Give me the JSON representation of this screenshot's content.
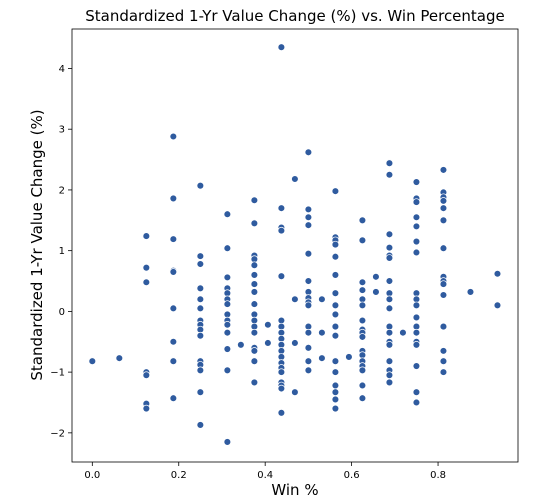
{
  "chart_data": {
    "type": "scatter",
    "title": "Standardized 1-Yr Value Change (%) vs. Win Percentage",
    "xlabel": "Win %",
    "ylabel": "Standardized 1-Yr Value Change (%)",
    "xlim": [
      -0.047,
      0.985
    ],
    "ylim": [
      -2.48,
      4.65
    ],
    "xticks": [
      {
        "value": 0.0,
        "label": "0.0"
      },
      {
        "value": 0.2,
        "label": "0.2"
      },
      {
        "value": 0.4,
        "label": "0.4"
      },
      {
        "value": 0.6,
        "label": "0.6"
      },
      {
        "value": 0.8,
        "label": "0.8"
      }
    ],
    "yticks": [
      {
        "value": -2,
        "label": "−2"
      },
      {
        "value": -1,
        "label": "−1"
      },
      {
        "value": 0,
        "label": "0"
      },
      {
        "value": 1,
        "label": "1"
      },
      {
        "value": 2,
        "label": "2"
      },
      {
        "value": 3,
        "label": "3"
      },
      {
        "value": 4,
        "label": "4"
      }
    ],
    "grid": false,
    "color": "#2f5b9f",
    "points": [
      {
        "x": 0.0,
        "y": -0.82
      },
      {
        "x": 0.0625,
        "y": -0.77
      },
      {
        "x": 0.125,
        "y": 1.24
      },
      {
        "x": 0.125,
        "y": 0.72
      },
      {
        "x": 0.125,
        "y": 0.48
      },
      {
        "x": 0.125,
        "y": -1.0
      },
      {
        "x": 0.125,
        "y": -1.05
      },
      {
        "x": 0.125,
        "y": -1.52
      },
      {
        "x": 0.125,
        "y": -1.6
      },
      {
        "x": 0.1875,
        "y": 2.88
      },
      {
        "x": 0.1875,
        "y": 1.86
      },
      {
        "x": 0.1875,
        "y": 1.19
      },
      {
        "x": 0.1875,
        "y": 0.67
      },
      {
        "x": 0.1875,
        "y": 0.65
      },
      {
        "x": 0.1875,
        "y": 0.05
      },
      {
        "x": 0.1875,
        "y": -0.5
      },
      {
        "x": 0.1875,
        "y": -0.82
      },
      {
        "x": 0.1875,
        "y": -1.43
      },
      {
        "x": 0.25,
        "y": 2.07
      },
      {
        "x": 0.25,
        "y": 0.91
      },
      {
        "x": 0.25,
        "y": 0.78
      },
      {
        "x": 0.25,
        "y": 0.38
      },
      {
        "x": 0.25,
        "y": 0.2
      },
      {
        "x": 0.25,
        "y": 0.05
      },
      {
        "x": 0.25,
        "y": -0.15
      },
      {
        "x": 0.25,
        "y": -0.22
      },
      {
        "x": 0.25,
        "y": -0.3
      },
      {
        "x": 0.25,
        "y": -0.4
      },
      {
        "x": 0.25,
        "y": -0.82
      },
      {
        "x": 0.25,
        "y": -0.88
      },
      {
        "x": 0.25,
        "y": -0.97
      },
      {
        "x": 0.25,
        "y": -1.33
      },
      {
        "x": 0.25,
        "y": -1.87
      },
      {
        "x": 0.3125,
        "y": 1.6
      },
      {
        "x": 0.3125,
        "y": 1.04
      },
      {
        "x": 0.3125,
        "y": 0.56
      },
      {
        "x": 0.3125,
        "y": 0.38
      },
      {
        "x": 0.3125,
        "y": 0.3
      },
      {
        "x": 0.3125,
        "y": 0.2
      },
      {
        "x": 0.3125,
        "y": 0.12
      },
      {
        "x": 0.3125,
        "y": -0.05
      },
      {
        "x": 0.3125,
        "y": -0.15
      },
      {
        "x": 0.3125,
        "y": -0.22
      },
      {
        "x": 0.3125,
        "y": -0.35
      },
      {
        "x": 0.3125,
        "y": -0.62
      },
      {
        "x": 0.3125,
        "y": -0.97
      },
      {
        "x": 0.3125,
        "y": -2.15
      },
      {
        "x": 0.34375,
        "y": -0.55
      },
      {
        "x": 0.375,
        "y": 1.83
      },
      {
        "x": 0.375,
        "y": 1.45
      },
      {
        "x": 0.375,
        "y": 0.92
      },
      {
        "x": 0.375,
        "y": 0.86
      },
      {
        "x": 0.375,
        "y": 0.76
      },
      {
        "x": 0.375,
        "y": 0.6
      },
      {
        "x": 0.375,
        "y": 0.45
      },
      {
        "x": 0.375,
        "y": 0.32
      },
      {
        "x": 0.375,
        "y": 0.12
      },
      {
        "x": 0.375,
        "y": -0.05
      },
      {
        "x": 0.375,
        "y": -0.15
      },
      {
        "x": 0.375,
        "y": -0.25
      },
      {
        "x": 0.375,
        "y": -0.35
      },
      {
        "x": 0.375,
        "y": -0.6
      },
      {
        "x": 0.375,
        "y": -0.65
      },
      {
        "x": 0.375,
        "y": -0.82
      },
      {
        "x": 0.375,
        "y": -1.17
      },
      {
        "x": 0.40625,
        "y": -0.22
      },
      {
        "x": 0.40625,
        "y": -0.52
      },
      {
        "x": 0.4375,
        "y": 4.35
      },
      {
        "x": 0.4375,
        "y": 1.7
      },
      {
        "x": 0.4375,
        "y": 1.38
      },
      {
        "x": 0.4375,
        "y": 1.33
      },
      {
        "x": 0.4375,
        "y": 0.58
      },
      {
        "x": 0.4375,
        "y": -0.15
      },
      {
        "x": 0.4375,
        "y": -0.25
      },
      {
        "x": 0.4375,
        "y": -0.35
      },
      {
        "x": 0.4375,
        "y": -0.45
      },
      {
        "x": 0.4375,
        "y": -0.55
      },
      {
        "x": 0.4375,
        "y": -0.65
      },
      {
        "x": 0.4375,
        "y": -0.75
      },
      {
        "x": 0.4375,
        "y": -0.85
      },
      {
        "x": 0.4375,
        "y": -0.93
      },
      {
        "x": 0.4375,
        "y": -1.0
      },
      {
        "x": 0.4375,
        "y": -1.17
      },
      {
        "x": 0.4375,
        "y": -1.22
      },
      {
        "x": 0.4375,
        "y": -1.27
      },
      {
        "x": 0.4375,
        "y": -1.67
      },
      {
        "x": 0.46875,
        "y": 2.18
      },
      {
        "x": 0.46875,
        "y": 0.2
      },
      {
        "x": 0.46875,
        "y": -0.52
      },
      {
        "x": 0.46875,
        "y": -1.33
      },
      {
        "x": 0.5,
        "y": 2.62
      },
      {
        "x": 0.5,
        "y": 1.68
      },
      {
        "x": 0.5,
        "y": 1.55
      },
      {
        "x": 0.5,
        "y": 1.42
      },
      {
        "x": 0.5,
        "y": 0.95
      },
      {
        "x": 0.5,
        "y": 0.5
      },
      {
        "x": 0.5,
        "y": 0.32
      },
      {
        "x": 0.5,
        "y": 0.22
      },
      {
        "x": 0.5,
        "y": 0.15
      },
      {
        "x": 0.5,
        "y": 0.1
      },
      {
        "x": 0.5,
        "y": -0.25
      },
      {
        "x": 0.5,
        "y": -0.35
      },
      {
        "x": 0.5,
        "y": -0.6
      },
      {
        "x": 0.5,
        "y": -0.82
      },
      {
        "x": 0.5,
        "y": -0.97
      },
      {
        "x": 0.53125,
        "y": 0.2
      },
      {
        "x": 0.53125,
        "y": -0.35
      },
      {
        "x": 0.53125,
        "y": -0.77
      },
      {
        "x": 0.5625,
        "y": 1.98
      },
      {
        "x": 0.5625,
        "y": 1.22
      },
      {
        "x": 0.5625,
        "y": 1.17
      },
      {
        "x": 0.5625,
        "y": 1.1
      },
      {
        "x": 0.5625,
        "y": 0.9
      },
      {
        "x": 0.5625,
        "y": 0.6
      },
      {
        "x": 0.5625,
        "y": 0.3
      },
      {
        "x": 0.5625,
        "y": 0.1
      },
      {
        "x": 0.5625,
        "y": -0.05
      },
      {
        "x": 0.5625,
        "y": -0.25
      },
      {
        "x": 0.5625,
        "y": -0.4
      },
      {
        "x": 0.5625,
        "y": -0.82
      },
      {
        "x": 0.5625,
        "y": -1.0
      },
      {
        "x": 0.5625,
        "y": -1.22
      },
      {
        "x": 0.5625,
        "y": -1.33
      },
      {
        "x": 0.5625,
        "y": -1.45
      },
      {
        "x": 0.5625,
        "y": -1.6
      },
      {
        "x": 0.59375,
        "y": -0.75
      },
      {
        "x": 0.625,
        "y": 1.5
      },
      {
        "x": 0.625,
        "y": 1.17
      },
      {
        "x": 0.625,
        "y": 0.48
      },
      {
        "x": 0.625,
        "y": 0.35
      },
      {
        "x": 0.625,
        "y": 0.2
      },
      {
        "x": 0.625,
        "y": 0.1
      },
      {
        "x": 0.625,
        "y": -0.15
      },
      {
        "x": 0.625,
        "y": -0.3
      },
      {
        "x": 0.625,
        "y": -0.35
      },
      {
        "x": 0.625,
        "y": -0.42
      },
      {
        "x": 0.625,
        "y": -0.65
      },
      {
        "x": 0.625,
        "y": -0.72
      },
      {
        "x": 0.625,
        "y": -0.82
      },
      {
        "x": 0.625,
        "y": -0.9
      },
      {
        "x": 0.625,
        "y": -0.97
      },
      {
        "x": 0.625,
        "y": -1.22
      },
      {
        "x": 0.625,
        "y": -1.43
      },
      {
        "x": 0.65625,
        "y": 0.57
      },
      {
        "x": 0.65625,
        "y": 0.32
      },
      {
        "x": 0.6875,
        "y": 2.44
      },
      {
        "x": 0.6875,
        "y": 2.25
      },
      {
        "x": 0.6875,
        "y": 1.27
      },
      {
        "x": 0.6875,
        "y": 1.05
      },
      {
        "x": 0.6875,
        "y": 0.92
      },
      {
        "x": 0.6875,
        "y": 0.88
      },
      {
        "x": 0.6875,
        "y": 0.5
      },
      {
        "x": 0.6875,
        "y": 0.3
      },
      {
        "x": 0.6875,
        "y": 0.2
      },
      {
        "x": 0.6875,
        "y": 0.05
      },
      {
        "x": 0.6875,
        "y": -0.25
      },
      {
        "x": 0.6875,
        "y": -0.35
      },
      {
        "x": 0.6875,
        "y": -0.5
      },
      {
        "x": 0.6875,
        "y": -0.55
      },
      {
        "x": 0.6875,
        "y": -0.82
      },
      {
        "x": 0.6875,
        "y": -0.97
      },
      {
        "x": 0.6875,
        "y": -1.05
      },
      {
        "x": 0.6875,
        "y": -1.17
      },
      {
        "x": 0.71875,
        "y": -0.35
      },
      {
        "x": 0.75,
        "y": 2.13
      },
      {
        "x": 0.75,
        "y": 1.86
      },
      {
        "x": 0.75,
        "y": 1.8
      },
      {
        "x": 0.75,
        "y": 1.55
      },
      {
        "x": 0.75,
        "y": 1.4
      },
      {
        "x": 0.75,
        "y": 1.15
      },
      {
        "x": 0.75,
        "y": 0.97
      },
      {
        "x": 0.75,
        "y": 0.3
      },
      {
        "x": 0.75,
        "y": 0.2
      },
      {
        "x": 0.75,
        "y": 0.1
      },
      {
        "x": 0.75,
        "y": -0.1
      },
      {
        "x": 0.75,
        "y": -0.25
      },
      {
        "x": 0.75,
        "y": -0.35
      },
      {
        "x": 0.75,
        "y": -0.5
      },
      {
        "x": 0.75,
        "y": -0.55
      },
      {
        "x": 0.75,
        "y": -0.9
      },
      {
        "x": 0.75,
        "y": -1.33
      },
      {
        "x": 0.75,
        "y": -1.5
      },
      {
        "x": 0.8125,
        "y": 2.33
      },
      {
        "x": 0.8125,
        "y": 1.96
      },
      {
        "x": 0.8125,
        "y": 1.88
      },
      {
        "x": 0.8125,
        "y": 1.82
      },
      {
        "x": 0.8125,
        "y": 1.7
      },
      {
        "x": 0.8125,
        "y": 1.5
      },
      {
        "x": 0.8125,
        "y": 1.04
      },
      {
        "x": 0.8125,
        "y": 0.57
      },
      {
        "x": 0.8125,
        "y": 0.5
      },
      {
        "x": 0.8125,
        "y": 0.45
      },
      {
        "x": 0.8125,
        "y": 0.27
      },
      {
        "x": 0.8125,
        "y": -0.25
      },
      {
        "x": 0.8125,
        "y": -0.65
      },
      {
        "x": 0.8125,
        "y": -0.82
      },
      {
        "x": 0.8125,
        "y": -1.0
      },
      {
        "x": 0.875,
        "y": 0.32
      },
      {
        "x": 0.9375,
        "y": 0.62
      },
      {
        "x": 0.9375,
        "y": 0.1
      }
    ]
  }
}
